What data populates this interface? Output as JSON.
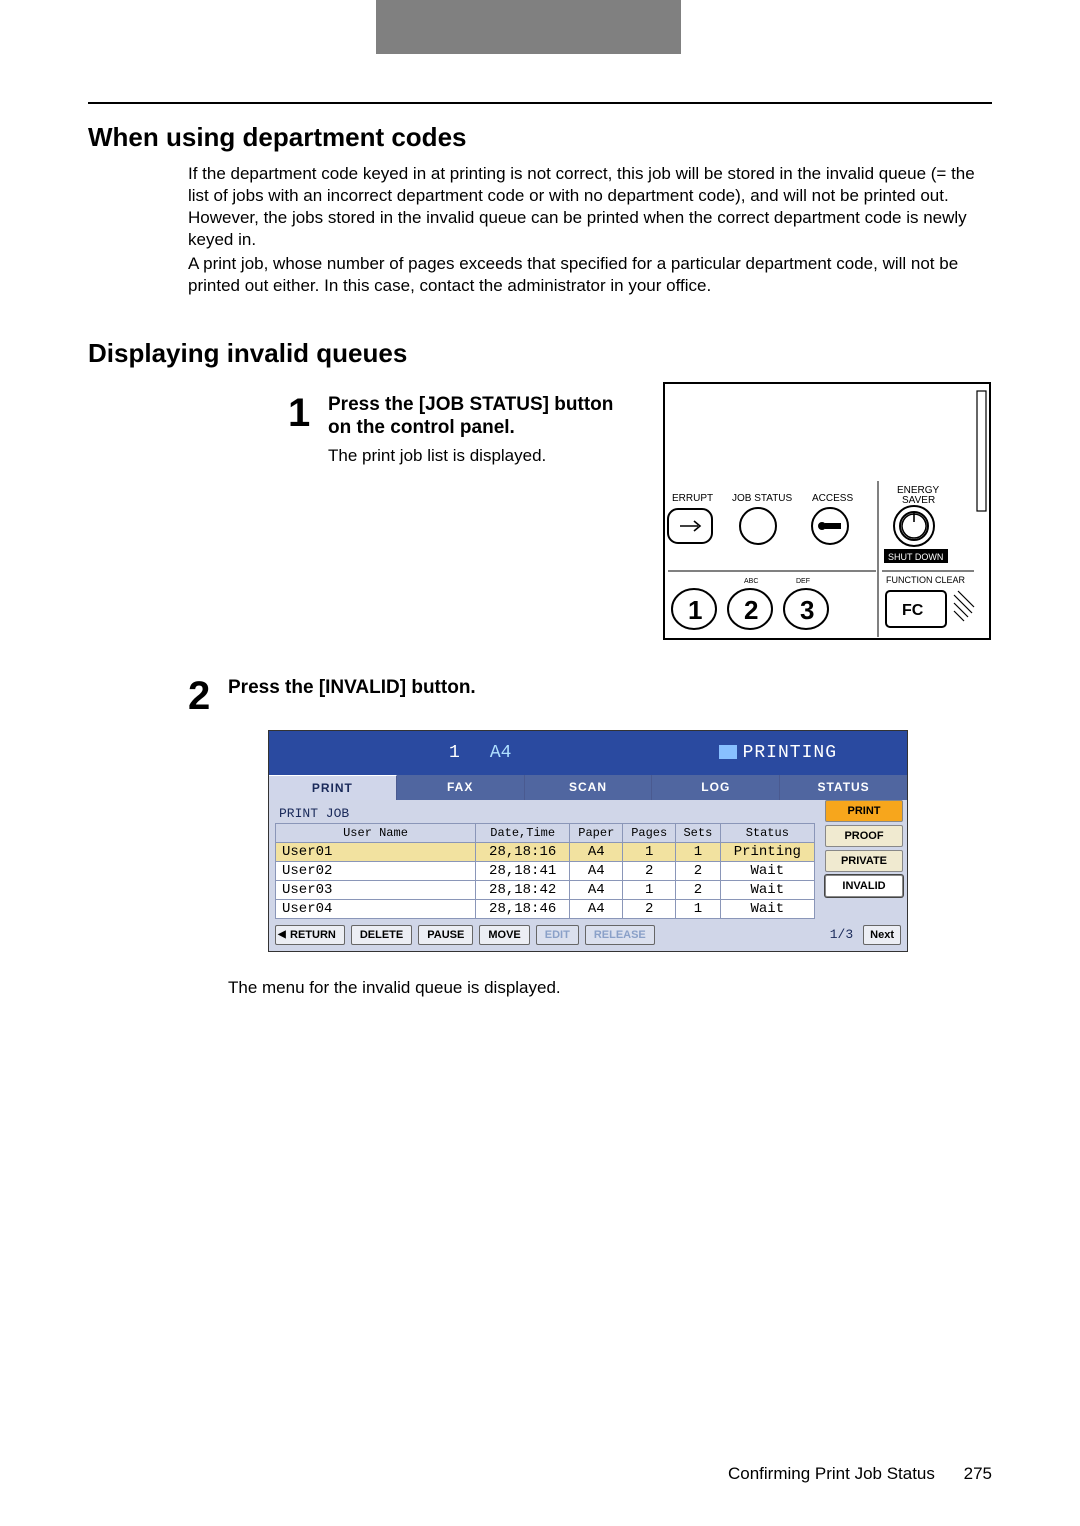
{
  "top_bar_color": "#808080",
  "section1_title": "When using department codes",
  "section1_para1": "If the department code keyed in at printing is not correct, this job will be stored in the invalid queue (= the list of jobs with an incorrect department code or with no department code), and will not be printed out. However, the jobs stored in the invalid queue can be printed when the correct department code is newly keyed in.",
  "section1_para2": "A print job, whose number of pages exceeds that specified for a particular department code, will not be printed out either. In this case, contact the administrator in your office.",
  "section2_title": "Displaying invalid queues",
  "step1_num": "1",
  "step1_title": "Press the [JOB STATUS] button on the control panel.",
  "step1_sub": "The print job list is displayed.",
  "step2_num": "2",
  "step2_title": "Press the [INVALID] button.",
  "control_panel": {
    "labels": {
      "interrupt": "ERRUPT",
      "job_status": "JOB STATUS",
      "access": "ACCESS",
      "energy_saver_l1": "ENERGY",
      "energy_saver_l2": "SAVER",
      "shut_down": "SHUT DOWN",
      "function_clear": "FUNCTION CLEAR",
      "abc": "ABC",
      "def": "DEF",
      "fc": "FC"
    },
    "digits": [
      "1",
      "2",
      "3"
    ]
  },
  "screen": {
    "top": {
      "tray": "1",
      "paper": "A4",
      "status": "PRINTING"
    },
    "tabs": [
      "PRINT",
      "FAX",
      "SCAN",
      "LOG",
      "STATUS"
    ],
    "active_tab": 0,
    "subtitle": "PRINT JOB",
    "columns": [
      "User Name",
      "Date,Time",
      "Paper",
      "Pages",
      "Sets",
      "Status"
    ],
    "rows": [
      {
        "user": "User01",
        "dt": "28,18:16",
        "paper": "A4",
        "pages": "1",
        "sets": "1",
        "status": "Printing",
        "selected": true
      },
      {
        "user": "User02",
        "dt": "28,18:41",
        "paper": "A4",
        "pages": "2",
        "sets": "2",
        "status": "Wait",
        "selected": false
      },
      {
        "user": "User03",
        "dt": "28,18:42",
        "paper": "A4",
        "pages": "1",
        "sets": "2",
        "status": "Wait",
        "selected": false
      },
      {
        "user": "User04",
        "dt": "28,18:46",
        "paper": "A4",
        "pages": "2",
        "sets": "1",
        "status": "Wait",
        "selected": false
      }
    ],
    "side_buttons": [
      {
        "label": "PRINT",
        "style": "orange"
      },
      {
        "label": "PROOF",
        "style": ""
      },
      {
        "label": "PRIVATE",
        "style": ""
      },
      {
        "label": "INVALID",
        "style": "selected"
      }
    ],
    "bottom_buttons_left": [
      "RETURN",
      "DELETE",
      "PAUSE",
      "MOVE"
    ],
    "bottom_buttons_dim": [
      "EDIT",
      "RELEASE"
    ],
    "page_indicator": "1/3",
    "next_label": "Next"
  },
  "after_text": "The menu for the invalid queue is displayed.",
  "footer_text": "Confirming Print Job Status",
  "footer_page": "275"
}
